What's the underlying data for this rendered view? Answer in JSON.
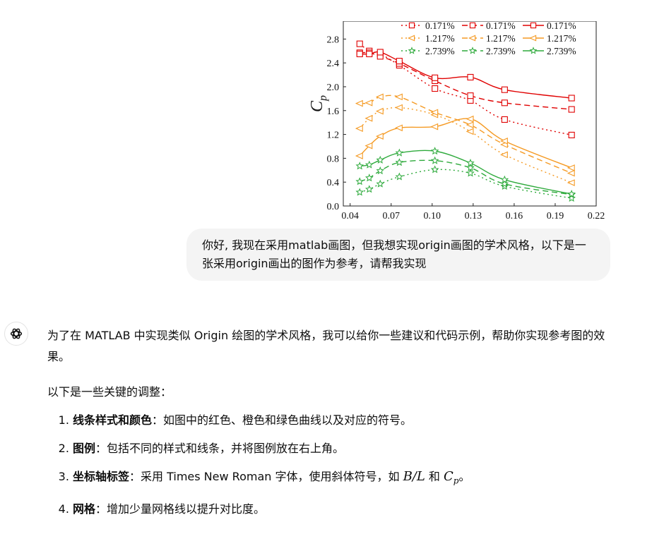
{
  "conversation": {
    "user_message": "你好, 我现在采用matlab画图，但我想实现origin画图的学术风格，以下是一张采用origin画出的图作为参考，请帮我实现",
    "assistant": {
      "intro": "为了在 MATLAB 中实现类似 Origin 绘图的学术风格，我可以给你一些建议和代码示例，帮助你实现参考图的效果。",
      "lead": "以下是一些关键的调整：",
      "items": [
        {
          "title": "线条样式和颜色",
          "text": "：如图中的红色、橙色和绿色曲线以及对应的符号。"
        },
        {
          "title": "图例",
          "text": "：包括不同的样式和线条，并将图例放在右上角。"
        },
        {
          "title": "坐标轴标签",
          "text_before": "：采用 Times New Roman 字体，使用斜体符号，如 ",
          "math1": "B/L",
          "text_mid": " 和 ",
          "math2_main": "C",
          "math2_sub": "p",
          "text_after": "。"
        },
        {
          "title": "网格",
          "text": "：增加少量网格线以提升对比度。"
        }
      ]
    }
  },
  "icons": {
    "assistant_avatar": "openai-logo-icon"
  },
  "colors": {
    "red": "#e00000",
    "orange": "#f59a23",
    "green": "#2eaa3c"
  },
  "chart_data": {
    "type": "line",
    "xlabel": "",
    "ylabel": "Cp",
    "xticks": [
      "0.04",
      "0.07",
      "0.10",
      "0.13",
      "0.16",
      "0.19",
      "0.22"
    ],
    "yticks": [
      "0.0",
      "0.4",
      "0.8",
      "1.2",
      "1.6",
      "2.0",
      "2.4",
      "2.8"
    ],
    "xlim": [
      0.035,
      0.22
    ],
    "ylim": [
      0.0,
      3.1
    ],
    "legend_position": "top-right",
    "legend": [
      {
        "label": "0.171%",
        "color": "#e00000",
        "style": "dotted",
        "marker": "square"
      },
      {
        "label": "0.171%",
        "color": "#e00000",
        "style": "dashed",
        "marker": "square"
      },
      {
        "label": "0.171%",
        "color": "#e00000",
        "style": "solid",
        "marker": "square"
      },
      {
        "label": "1.217%",
        "color": "#f59a23",
        "style": "dotted",
        "marker": "triangle-left"
      },
      {
        "label": "1.217%",
        "color": "#f59a23",
        "style": "dashed",
        "marker": "triangle-left"
      },
      {
        "label": "1.217%",
        "color": "#f59a23",
        "style": "solid",
        "marker": "triangle-left"
      },
      {
        "label": "2.739%",
        "color": "#2eaa3c",
        "style": "dotted",
        "marker": "star"
      },
      {
        "label": "2.739%",
        "color": "#2eaa3c",
        "style": "dashed",
        "marker": "star"
      },
      {
        "label": "2.739%",
        "color": "#2eaa3c",
        "style": "solid",
        "marker": "star"
      }
    ],
    "series": [
      {
        "color": "#e00000",
        "style": "dotted",
        "marker": "square",
        "x": [
          0.047,
          0.054,
          0.062,
          0.076,
          0.102,
          0.128,
          0.153,
          0.202
        ],
        "y": [
          2.72,
          2.6,
          2.55,
          2.36,
          1.97,
          1.77,
          1.45,
          1.19
        ]
      },
      {
        "color": "#e00000",
        "style": "dashed",
        "marker": "square",
        "x": [
          0.047,
          0.054,
          0.062,
          0.076,
          0.102,
          0.128,
          0.153,
          0.202
        ],
        "y": [
          2.57,
          2.57,
          2.51,
          2.39,
          2.1,
          1.85,
          1.73,
          1.62
        ]
      },
      {
        "color": "#e00000",
        "style": "solid",
        "marker": "square",
        "x": [
          0.047,
          0.054,
          0.062,
          0.076,
          0.102,
          0.128,
          0.153,
          0.202
        ],
        "y": [
          2.55,
          2.55,
          2.58,
          2.43,
          2.15,
          2.16,
          1.95,
          1.81
        ]
      },
      {
        "color": "#f59a23",
        "style": "dotted",
        "marker": "triangle-left",
        "x": [
          0.047,
          0.054,
          0.062,
          0.076,
          0.102,
          0.128,
          0.153,
          0.202
        ],
        "y": [
          1.3,
          1.47,
          1.59,
          1.65,
          1.53,
          1.25,
          0.86,
          0.39
        ]
      },
      {
        "color": "#f59a23",
        "style": "dashed",
        "marker": "triangle-left",
        "x": [
          0.047,
          0.054,
          0.062,
          0.076,
          0.102,
          0.128,
          0.153,
          0.202
        ],
        "y": [
          1.72,
          1.73,
          1.83,
          1.83,
          1.57,
          1.36,
          1.03,
          0.55
        ]
      },
      {
        "color": "#f59a23",
        "style": "solid",
        "marker": "triangle-left",
        "x": [
          0.047,
          0.054,
          0.062,
          0.076,
          0.102,
          0.128,
          0.153,
          0.202
        ],
        "y": [
          0.84,
          1.01,
          1.17,
          1.31,
          1.33,
          1.46,
          1.09,
          0.64
        ]
      },
      {
        "color": "#2eaa3c",
        "style": "dotted",
        "marker": "star",
        "x": [
          0.047,
          0.054,
          0.062,
          0.076,
          0.102,
          0.128,
          0.153,
          0.202
        ],
        "y": [
          0.23,
          0.28,
          0.37,
          0.49,
          0.61,
          0.55,
          0.33,
          0.13
        ]
      },
      {
        "color": "#2eaa3c",
        "style": "dashed",
        "marker": "star",
        "x": [
          0.047,
          0.054,
          0.062,
          0.076,
          0.102,
          0.128,
          0.153,
          0.202
        ],
        "y": [
          0.41,
          0.47,
          0.59,
          0.73,
          0.76,
          0.64,
          0.37,
          0.19
        ]
      },
      {
        "color": "#2eaa3c",
        "style": "solid",
        "marker": "star",
        "x": [
          0.047,
          0.054,
          0.062,
          0.076,
          0.102,
          0.128,
          0.153,
          0.202
        ],
        "y": [
          0.67,
          0.69,
          0.77,
          0.89,
          0.92,
          0.72,
          0.44,
          0.2
        ]
      }
    ]
  }
}
